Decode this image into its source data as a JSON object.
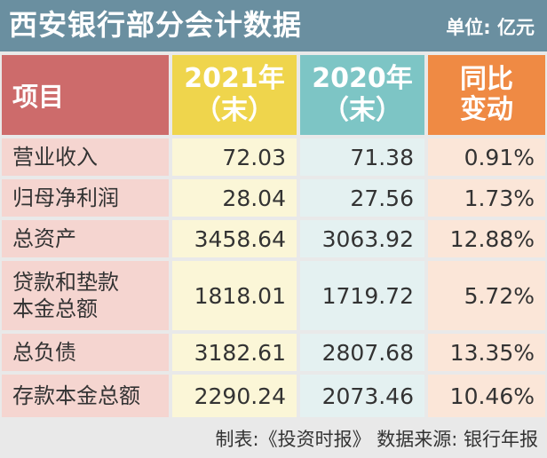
{
  "header": {
    "title": "西安银行部分会计数据",
    "unit": "单位: 亿元"
  },
  "columns": {
    "item": "项目",
    "y2021_line1": "2021年",
    "y2021_line2": "（末）",
    "y2020_line1": "2020年",
    "y2020_line2": "（末）",
    "yoy_line1": "同比",
    "yoy_line2": "变动"
  },
  "rows": [
    {
      "label": "营业收入",
      "y2021": "72.03",
      "y2020": "71.38",
      "yoy": "0.91%"
    },
    {
      "label": "归母净利润",
      "y2021": "28.04",
      "y2020": "27.56",
      "yoy": "1.73%"
    },
    {
      "label": "总资产",
      "y2021": "3458.64",
      "y2020": "3063.92",
      "yoy": "12.88%"
    },
    {
      "label_line1": "贷款和垫款",
      "label_line2": "本金总额",
      "y2021": "1818.01",
      "y2020": "1719.72",
      "yoy": "5.72%"
    },
    {
      "label": "总负债",
      "y2021": "3182.61",
      "y2020": "2807.68",
      "yoy": "13.35%"
    },
    {
      "label": "存款本金总额",
      "y2021": "2290.24",
      "y2020": "2073.46",
      "yoy": "10.46%"
    }
  ],
  "footer": {
    "text": "制表:《投资时报》 数据来源: 银行年报"
  }
}
